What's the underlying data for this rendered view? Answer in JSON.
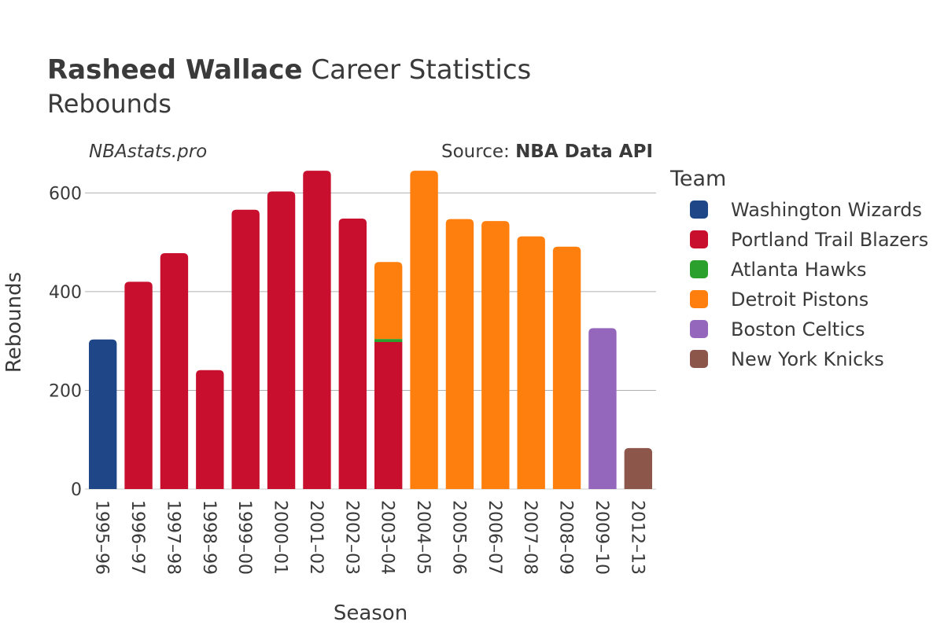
{
  "header": {
    "title_bold": "Rasheed Wallace",
    "title_rest": " Career Statistics",
    "subtitle": "Rebounds",
    "watermark": "NBAstats.pro",
    "source_prefix": "Source: ",
    "source_bold": "NBA Data API"
  },
  "chart_data": {
    "type": "bar",
    "stacked": true,
    "xlabel": "Season",
    "ylabel": "Rebounds",
    "ylim": [
      0,
      650
    ],
    "yticks": [
      0,
      200,
      400,
      600
    ],
    "grid": true,
    "legend_title": "Team",
    "legend_position": "right",
    "categories": [
      "1995–96",
      "1996–97",
      "1997–98",
      "1998–99",
      "1999–00",
      "2000–01",
      "2001–02",
      "2002–03",
      "2003–04",
      "2004–05",
      "2005–06",
      "2006–07",
      "2007–08",
      "2008–09",
      "2009–10",
      "2012–13"
    ],
    "series": [
      {
        "name": "Washington Wizards",
        "color": "#1f4788",
        "values": [
          303,
          0,
          0,
          0,
          0,
          0,
          0,
          0,
          0,
          0,
          0,
          0,
          0,
          0,
          0,
          0
        ]
      },
      {
        "name": "Portland Trail Blazers",
        "color": "#c8102e",
        "values": [
          0,
          420,
          478,
          241,
          566,
          603,
          645,
          548,
          298,
          0,
          0,
          0,
          0,
          0,
          0,
          0
        ]
      },
      {
        "name": "Atlanta Hawks",
        "color": "#2ca02c",
        "values": [
          0,
          0,
          0,
          0,
          0,
          0,
          0,
          0,
          6,
          0,
          0,
          0,
          0,
          0,
          0,
          0
        ]
      },
      {
        "name": "Detroit Pistons",
        "color": "#ff7f0e",
        "values": [
          0,
          0,
          0,
          0,
          0,
          0,
          0,
          0,
          156,
          645,
          547,
          543,
          512,
          491,
          0,
          0
        ]
      },
      {
        "name": "Boston Celtics",
        "color": "#9467bd",
        "values": [
          0,
          0,
          0,
          0,
          0,
          0,
          0,
          0,
          0,
          0,
          0,
          0,
          0,
          0,
          326,
          0
        ]
      },
      {
        "name": "New York Knicks",
        "color": "#8c564b",
        "values": [
          0,
          0,
          0,
          0,
          0,
          0,
          0,
          0,
          0,
          0,
          0,
          0,
          0,
          0,
          0,
          83
        ]
      }
    ]
  }
}
